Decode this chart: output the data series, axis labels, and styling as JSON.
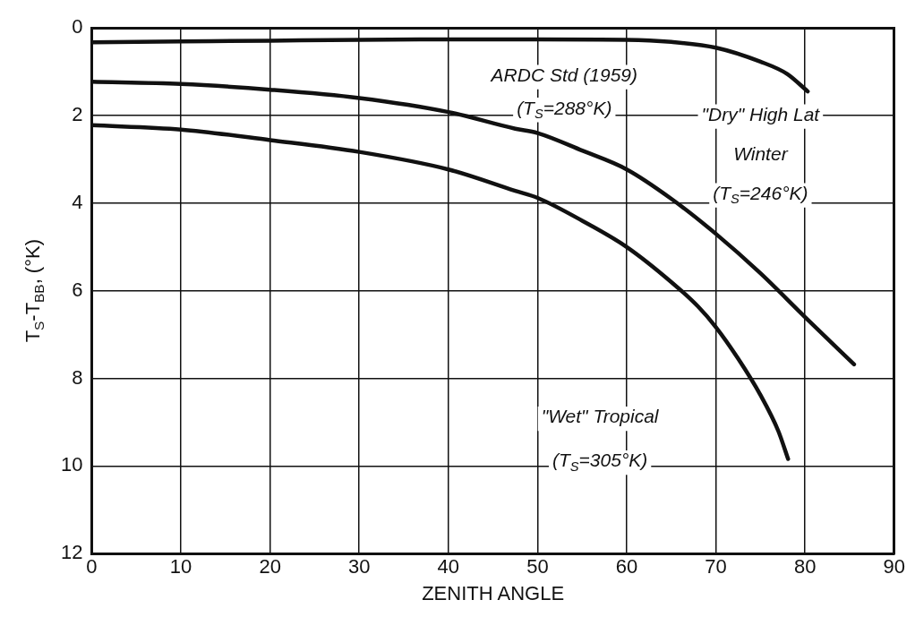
{
  "chart_data": {
    "type": "line",
    "xlabel": "ZENITH ANGLE",
    "ylabel": "T$_{S}$-T$_{BB}$, (°K)",
    "xlim": [
      0,
      90
    ],
    "xticks": [
      0,
      10,
      20,
      30,
      40,
      50,
      60,
      70,
      80,
      90
    ],
    "ylim": [
      12,
      0
    ],
    "yticks": [
      0,
      2,
      4,
      6,
      8,
      10,
      12
    ],
    "grid": true,
    "legend": false,
    "marker": "none",
    "line_style": "solid",
    "series": [
      {
        "name": "\"Dry\" High Lat\nWinter\n(T$_{S}$=246°K)",
        "color": "#111111",
        "x": [
          0,
          10,
          20,
          30,
          40,
          50,
          60,
          65,
          70,
          75,
          78,
          80.3
        ],
        "values": [
          0.33,
          0.31,
          0.29,
          0.27,
          0.26,
          0.26,
          0.27,
          0.32,
          0.45,
          0.77,
          1.05,
          1.45
        ]
      },
      {
        "name": "ARDC Std (1959)\n(T$_{S}$=288°K)",
        "color": "#111111",
        "x": [
          0,
          10,
          20,
          30,
          40,
          47.5,
          50,
          55,
          60,
          65,
          70,
          75,
          80,
          85.5
        ],
        "values": [
          1.23,
          1.28,
          1.41,
          1.6,
          1.92,
          2.3,
          2.4,
          2.8,
          3.23,
          3.9,
          4.7,
          5.6,
          6.6,
          7.68
        ]
      },
      {
        "name": "\"Wet\" Tropical\n(T$_{S}$=305°K)",
        "color": "#111111",
        "x": [
          0,
          10,
          20,
          30,
          40,
          47.5,
          50,
          55,
          60,
          65,
          68,
          70,
          72.5,
          75,
          77,
          78.1
        ],
        "values": [
          2.22,
          2.32,
          2.56,
          2.83,
          3.23,
          3.72,
          3.88,
          4.4,
          5.0,
          5.8,
          6.36,
          6.83,
          7.55,
          8.38,
          9.2,
          9.84
        ]
      }
    ]
  }
}
